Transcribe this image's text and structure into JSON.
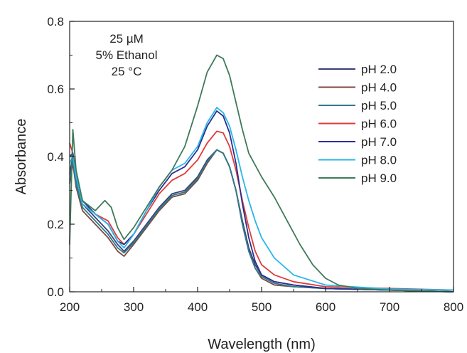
{
  "chart_data": {
    "type": "line",
    "xlabel": "Wavelength (nm)",
    "ylabel": "Absorbance",
    "xlim": [
      200,
      800
    ],
    "ylim": [
      0.0,
      0.8
    ],
    "xticks": [
      200,
      300,
      400,
      500,
      600,
      700,
      800
    ],
    "yticks": [
      0.0,
      0.2,
      0.4,
      0.6,
      0.8
    ],
    "xtick_labels": [
      "200",
      "300",
      "400",
      "500",
      "600",
      "700",
      "800"
    ],
    "ytick_labels": [
      "0.0",
      "0.2",
      "0.4",
      "0.6",
      "0.8"
    ],
    "annotations": [
      "25 µM",
      "5% Ethanol",
      "25 °C"
    ],
    "legend_position": "upper-right",
    "grid": false,
    "series": [
      {
        "name": "pH 2.0",
        "color": "#3b3f7a",
        "points": [
          [
            200,
            0.35
          ],
          [
            205,
            0.4
          ],
          [
            210,
            0.33
          ],
          [
            220,
            0.26
          ],
          [
            240,
            0.22
          ],
          [
            260,
            0.18
          ],
          [
            275,
            0.14
          ],
          [
            285,
            0.12
          ],
          [
            300,
            0.15
          ],
          [
            320,
            0.2
          ],
          [
            340,
            0.25
          ],
          [
            360,
            0.29
          ],
          [
            380,
            0.3
          ],
          [
            400,
            0.34
          ],
          [
            415,
            0.39
          ],
          [
            430,
            0.42
          ],
          [
            440,
            0.41
          ],
          [
            450,
            0.37
          ],
          [
            460,
            0.3
          ],
          [
            470,
            0.21
          ],
          [
            480,
            0.13
          ],
          [
            490,
            0.08
          ],
          [
            500,
            0.05
          ],
          [
            520,
            0.03
          ],
          [
            550,
            0.02
          ],
          [
            600,
            0.01
          ],
          [
            700,
            0.005
          ],
          [
            800,
            0.0
          ]
        ]
      },
      {
        "name": "pH 4.0",
        "color": "#7a4a3e",
        "points": [
          [
            200,
            0.32
          ],
          [
            205,
            0.38
          ],
          [
            210,
            0.31
          ],
          [
            220,
            0.24
          ],
          [
            240,
            0.2
          ],
          [
            260,
            0.16
          ],
          [
            275,
            0.12
          ],
          [
            285,
            0.105
          ],
          [
            300,
            0.14
          ],
          [
            320,
            0.19
          ],
          [
            340,
            0.24
          ],
          [
            360,
            0.28
          ],
          [
            380,
            0.29
          ],
          [
            400,
            0.33
          ],
          [
            415,
            0.38
          ],
          [
            430,
            0.42
          ],
          [
            440,
            0.41
          ],
          [
            450,
            0.37
          ],
          [
            460,
            0.3
          ],
          [
            470,
            0.2
          ],
          [
            480,
            0.12
          ],
          [
            490,
            0.07
          ],
          [
            500,
            0.04
          ],
          [
            520,
            0.02
          ],
          [
            550,
            0.015
          ],
          [
            600,
            0.01
          ],
          [
            700,
            0.005
          ],
          [
            800,
            0.0
          ]
        ]
      },
      {
        "name": "pH 5.0",
        "color": "#2e7b8a",
        "points": [
          [
            200,
            0.33
          ],
          [
            205,
            0.39
          ],
          [
            210,
            0.32
          ],
          [
            220,
            0.25
          ],
          [
            240,
            0.21
          ],
          [
            260,
            0.17
          ],
          [
            275,
            0.13
          ],
          [
            285,
            0.115
          ],
          [
            300,
            0.145
          ],
          [
            320,
            0.195
          ],
          [
            340,
            0.245
          ],
          [
            360,
            0.285
          ],
          [
            380,
            0.295
          ],
          [
            400,
            0.335
          ],
          [
            415,
            0.385
          ],
          [
            430,
            0.42
          ],
          [
            440,
            0.41
          ],
          [
            450,
            0.37
          ],
          [
            460,
            0.3
          ],
          [
            470,
            0.2
          ],
          [
            480,
            0.12
          ],
          [
            490,
            0.07
          ],
          [
            500,
            0.045
          ],
          [
            520,
            0.025
          ],
          [
            550,
            0.015
          ],
          [
            600,
            0.01
          ],
          [
            700,
            0.005
          ],
          [
            800,
            0.0
          ]
        ]
      },
      {
        "name": "pH 6.0",
        "color": "#e03a3a",
        "points": [
          [
            200,
            0.44
          ],
          [
            205,
            0.41
          ],
          [
            210,
            0.35
          ],
          [
            220,
            0.27
          ],
          [
            240,
            0.23
          ],
          [
            260,
            0.21
          ],
          [
            275,
            0.16
          ],
          [
            285,
            0.14
          ],
          [
            300,
            0.17
          ],
          [
            320,
            0.23
          ],
          [
            340,
            0.29
          ],
          [
            360,
            0.33
          ],
          [
            380,
            0.35
          ],
          [
            400,
            0.39
          ],
          [
            415,
            0.44
          ],
          [
            430,
            0.475
          ],
          [
            440,
            0.47
          ],
          [
            450,
            0.43
          ],
          [
            460,
            0.36
          ],
          [
            470,
            0.27
          ],
          [
            480,
            0.19
          ],
          [
            490,
            0.12
          ],
          [
            500,
            0.08
          ],
          [
            520,
            0.05
          ],
          [
            550,
            0.03
          ],
          [
            600,
            0.015
          ],
          [
            700,
            0.01
          ],
          [
            800,
            0.005
          ]
        ]
      },
      {
        "name": "pH 7.0",
        "color": "#2a2f8f",
        "points": [
          [
            200,
            0.4
          ],
          [
            205,
            0.41
          ],
          [
            210,
            0.34
          ],
          [
            220,
            0.27
          ],
          [
            240,
            0.23
          ],
          [
            260,
            0.2
          ],
          [
            275,
            0.15
          ],
          [
            285,
            0.14
          ],
          [
            300,
            0.17
          ],
          [
            320,
            0.24
          ],
          [
            340,
            0.3
          ],
          [
            360,
            0.35
          ],
          [
            380,
            0.37
          ],
          [
            400,
            0.42
          ],
          [
            415,
            0.49
          ],
          [
            430,
            0.535
          ],
          [
            440,
            0.52
          ],
          [
            450,
            0.47
          ],
          [
            460,
            0.38
          ],
          [
            470,
            0.26
          ],
          [
            480,
            0.16
          ],
          [
            490,
            0.09
          ],
          [
            500,
            0.05
          ],
          [
            520,
            0.03
          ],
          [
            550,
            0.02
          ],
          [
            600,
            0.01
          ],
          [
            700,
            0.005
          ],
          [
            800,
            0.0
          ]
        ]
      },
      {
        "name": "pH 8.0",
        "color": "#29b6ea",
        "points": [
          [
            200,
            0.38
          ],
          [
            205,
            0.4
          ],
          [
            210,
            0.34
          ],
          [
            220,
            0.26
          ],
          [
            240,
            0.23
          ],
          [
            260,
            0.2
          ],
          [
            275,
            0.15
          ],
          [
            285,
            0.13
          ],
          [
            300,
            0.17
          ],
          [
            320,
            0.24
          ],
          [
            340,
            0.31
          ],
          [
            360,
            0.36
          ],
          [
            380,
            0.38
          ],
          [
            400,
            0.43
          ],
          [
            415,
            0.5
          ],
          [
            430,
            0.545
          ],
          [
            440,
            0.53
          ],
          [
            450,
            0.49
          ],
          [
            460,
            0.42
          ],
          [
            470,
            0.34
          ],
          [
            480,
            0.27
          ],
          [
            490,
            0.21
          ],
          [
            500,
            0.16
          ],
          [
            520,
            0.1
          ],
          [
            550,
            0.05
          ],
          [
            600,
            0.02
          ],
          [
            700,
            0.008
          ],
          [
            800,
            0.005
          ]
        ]
      },
      {
        "name": "pH 9.0",
        "color": "#3f7a5a",
        "points": [
          [
            200,
            0.14
          ],
          [
            205,
            0.48
          ],
          [
            210,
            0.36
          ],
          [
            220,
            0.27
          ],
          [
            240,
            0.24
          ],
          [
            255,
            0.27
          ],
          [
            265,
            0.25
          ],
          [
            275,
            0.19
          ],
          [
            285,
            0.155
          ],
          [
            300,
            0.19
          ],
          [
            320,
            0.25
          ],
          [
            340,
            0.31
          ],
          [
            360,
            0.36
          ],
          [
            380,
            0.43
          ],
          [
            400,
            0.55
          ],
          [
            415,
            0.65
          ],
          [
            430,
            0.7
          ],
          [
            440,
            0.69
          ],
          [
            450,
            0.64
          ],
          [
            460,
            0.56
          ],
          [
            470,
            0.48
          ],
          [
            480,
            0.41
          ],
          [
            500,
            0.34
          ],
          [
            520,
            0.28
          ],
          [
            540,
            0.21
          ],
          [
            560,
            0.14
          ],
          [
            580,
            0.08
          ],
          [
            600,
            0.04
          ],
          [
            620,
            0.02
          ],
          [
            650,
            0.01
          ],
          [
            700,
            0.005
          ],
          [
            800,
            0.0
          ]
        ]
      }
    ]
  }
}
